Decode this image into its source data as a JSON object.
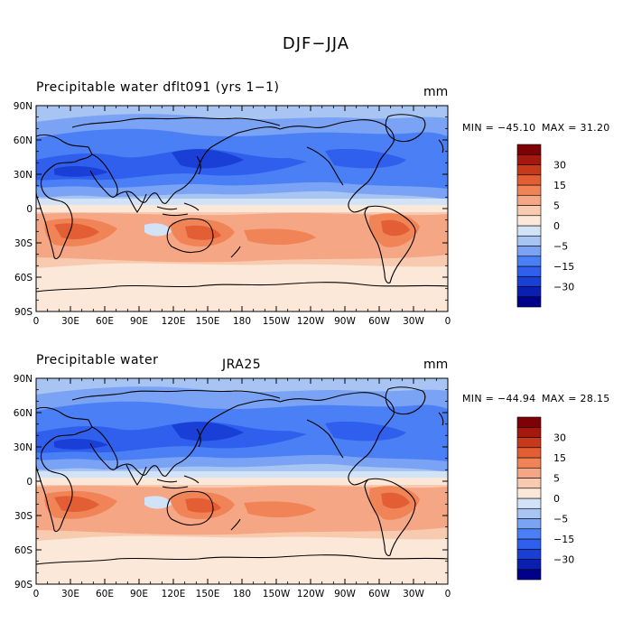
{
  "figure": {
    "title": "DJF−JJA",
    "colors": {
      "land_outline": "#000000",
      "scale": [
        "#00008a",
        "#0a1fb0",
        "#1a3fd6",
        "#2f5fec",
        "#4a7ff5",
        "#7ba3f5",
        "#a8c4f3",
        "#d3e3f7",
        "#fbe8d8",
        "#f8cbb0",
        "#f5a785",
        "#f08457",
        "#e35e34",
        "#c8391b",
        "#a5180d",
        "#7e0205"
      ]
    },
    "colorbar_ticks": [
      "30",
      "15",
      "5",
      "0",
      "−5",
      "−15",
      "−30"
    ],
    "lat_labels": [
      "90N",
      "60N",
      "30N",
      "0",
      "30S",
      "60S",
      "90S"
    ],
    "lon_labels": [
      "0",
      "30E",
      "60E",
      "90E",
      "120E",
      "150E",
      "180",
      "150W",
      "120W",
      "90W",
      "60W",
      "30W",
      "0"
    ]
  },
  "panels": [
    {
      "title": "Precipitable water   dflt091 (yrs 1−1)",
      "units": "mm",
      "min_label": "MIN = −45.10",
      "max_label": "MAX =   31.20",
      "dataset": ""
    },
    {
      "title": "Precipitable water",
      "units": "mm",
      "min_label": "MIN = −44.94",
      "max_label": "MAX =   28.15",
      "dataset": "JRA25"
    }
  ]
}
